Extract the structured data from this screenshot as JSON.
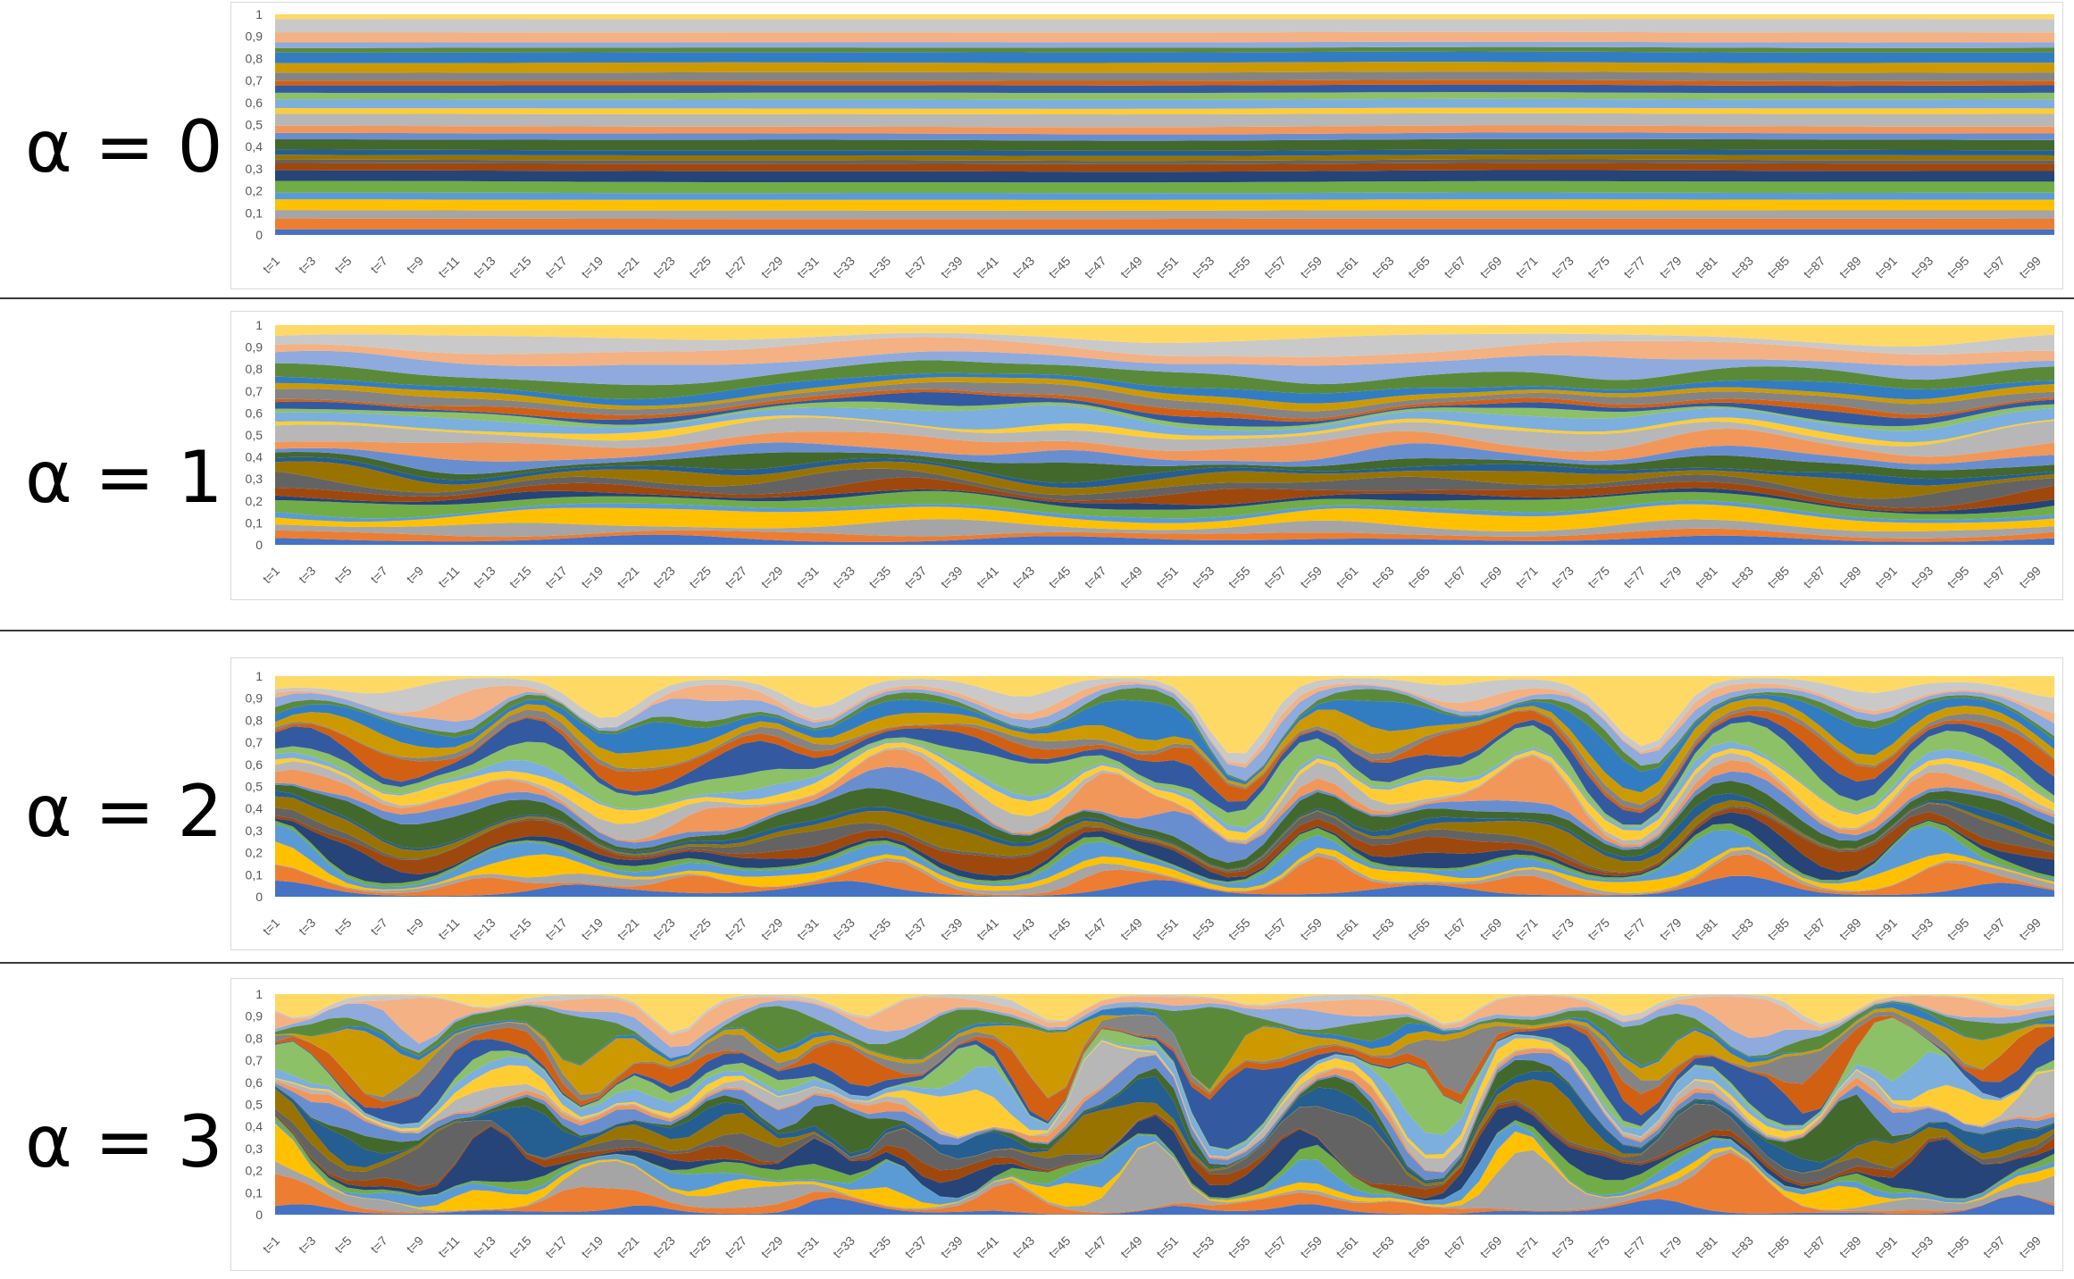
{
  "panels": [
    {
      "label": "α = 0"
    },
    {
      "label": "α = 1"
    },
    {
      "label": "α = 2"
    },
    {
      "label": "α = 3"
    }
  ],
  "chart_data": [
    {
      "type": "area",
      "stacking": "percent",
      "alpha": 0,
      "y_ticks": [
        "0",
        "0,1",
        "0,2",
        "0,3",
        "0,4",
        "0,5",
        "0,6",
        "0,7",
        "0,8",
        "0,9",
        "1"
      ],
      "ylim": [
        0,
        1
      ],
      "x_ticks": [
        "t=1",
        "t=3",
        "t=5",
        "t=7",
        "t=9",
        "t=11",
        "t=13",
        "t=15",
        "t=17",
        "t=19",
        "t=21",
        "t=23",
        "t=25",
        "t=27",
        "t=29",
        "t=31",
        "t=33",
        "t=35",
        "t=37",
        "t=39",
        "t=41",
        "t=43",
        "t=45",
        "t=47",
        "t=49",
        "t=51",
        "t=53",
        "t=55",
        "t=57",
        "t=59",
        "t=61",
        "t=63",
        "t=65",
        "t=67",
        "t=69",
        "t=71",
        "t=73",
        "t=75",
        "t=77",
        "t=79",
        "t=81",
        "t=83",
        "t=85",
        "t=87",
        "t=89",
        "t=91",
        "t=93",
        "t=95",
        "t=97",
        "t=99"
      ],
      "x_range": [
        1,
        100
      ],
      "n_series": 28,
      "variation": 0.05,
      "seed": 11,
      "grid": false,
      "legend": "none"
    },
    {
      "type": "area",
      "stacking": "percent",
      "alpha": 1,
      "y_ticks": [
        "0",
        "0,1",
        "0,2",
        "0,3",
        "0,4",
        "0,5",
        "0,6",
        "0,7",
        "0,8",
        "0,9",
        "1"
      ],
      "ylim": [
        0,
        1
      ],
      "x_ticks": [
        "t=1",
        "t=3",
        "t=5",
        "t=7",
        "t=9",
        "t=11",
        "t=13",
        "t=15",
        "t=17",
        "t=19",
        "t=21",
        "t=23",
        "t=25",
        "t=27",
        "t=29",
        "t=31",
        "t=33",
        "t=35",
        "t=37",
        "t=39",
        "t=41",
        "t=43",
        "t=45",
        "t=47",
        "t=49",
        "t=51",
        "t=53",
        "t=55",
        "t=57",
        "t=59",
        "t=61",
        "t=63",
        "t=65",
        "t=67",
        "t=69",
        "t=71",
        "t=73",
        "t=75",
        "t=77",
        "t=79",
        "t=81",
        "t=83",
        "t=85",
        "t=87",
        "t=89",
        "t=91",
        "t=93",
        "t=95",
        "t=97",
        "t=99"
      ],
      "x_range": [
        1,
        100
      ],
      "n_series": 28,
      "variation": 1.0,
      "seed": 23,
      "grid": false,
      "legend": "none"
    },
    {
      "type": "area",
      "stacking": "percent",
      "alpha": 2,
      "y_ticks": [
        "0",
        "0,1",
        "0,2",
        "0,3",
        "0,4",
        "0,5",
        "0,6",
        "0,7",
        "0,8",
        "0,9",
        "1"
      ],
      "ylim": [
        0,
        1
      ],
      "x_ticks": [
        "t=1",
        "t=3",
        "t=5",
        "t=7",
        "t=9",
        "t=11",
        "t=13",
        "t=15",
        "t=17",
        "t=19",
        "t=21",
        "t=23",
        "t=25",
        "t=27",
        "t=29",
        "t=31",
        "t=33",
        "t=35",
        "t=37",
        "t=39",
        "t=41",
        "t=43",
        "t=45",
        "t=47",
        "t=49",
        "t=51",
        "t=53",
        "t=55",
        "t=57",
        "t=59",
        "t=61",
        "t=63",
        "t=65",
        "t=67",
        "t=69",
        "t=71",
        "t=73",
        "t=75",
        "t=77",
        "t=79",
        "t=81",
        "t=83",
        "t=85",
        "t=87",
        "t=89",
        "t=91",
        "t=93",
        "t=95",
        "t=97",
        "t=99"
      ],
      "x_range": [
        1,
        100
      ],
      "n_series": 28,
      "variation": 2.0,
      "seed": 37,
      "grid": false,
      "legend": "none"
    },
    {
      "type": "area",
      "stacking": "percent",
      "alpha": 3,
      "y_ticks": [
        "0",
        "0,1",
        "0,2",
        "0,3",
        "0,4",
        "0,5",
        "0,6",
        "0,7",
        "0,8",
        "0,9",
        "1"
      ],
      "ylim": [
        0,
        1
      ],
      "x_ticks": [
        "t=1",
        "t=3",
        "t=5",
        "t=7",
        "t=9",
        "t=11",
        "t=13",
        "t=15",
        "t=17",
        "t=19",
        "t=21",
        "t=23",
        "t=25",
        "t=27",
        "t=29",
        "t=31",
        "t=33",
        "t=35",
        "t=37",
        "t=39",
        "t=41",
        "t=43",
        "t=45",
        "t=47",
        "t=49",
        "t=51",
        "t=53",
        "t=55",
        "t=57",
        "t=59",
        "t=61",
        "t=63",
        "t=65",
        "t=67",
        "t=69",
        "t=71",
        "t=73",
        "t=75",
        "t=77",
        "t=79",
        "t=81",
        "t=83",
        "t=85",
        "t=87",
        "t=89",
        "t=91",
        "t=93",
        "t=95",
        "t=97",
        "t=99"
      ],
      "x_range": [
        1,
        100
      ],
      "n_series": 28,
      "variation": 3.0,
      "seed": 53,
      "grid": false,
      "legend": "none"
    }
  ],
  "palette": [
    "#4472c4",
    "#ed7d31",
    "#a5a5a5",
    "#ffc000",
    "#5b9bd5",
    "#70ad47",
    "#264478",
    "#9e480e",
    "#636363",
    "#997300",
    "#255e91",
    "#43682b",
    "#698ed0",
    "#f1975a",
    "#b7b7b7",
    "#ffcd33",
    "#7cafdd",
    "#8cc168",
    "#335aa1",
    "#d26012",
    "#848484",
    "#cc9a00",
    "#327dc2",
    "#5a8a39",
    "#8faadc",
    "#f4b183",
    "#c9c9c9",
    "#ffd966"
  ],
  "colors": {
    "axis_text": "#595959",
    "frame": "#d9d9d9",
    "divider": "#3a3a3a",
    "label": "#000000"
  }
}
